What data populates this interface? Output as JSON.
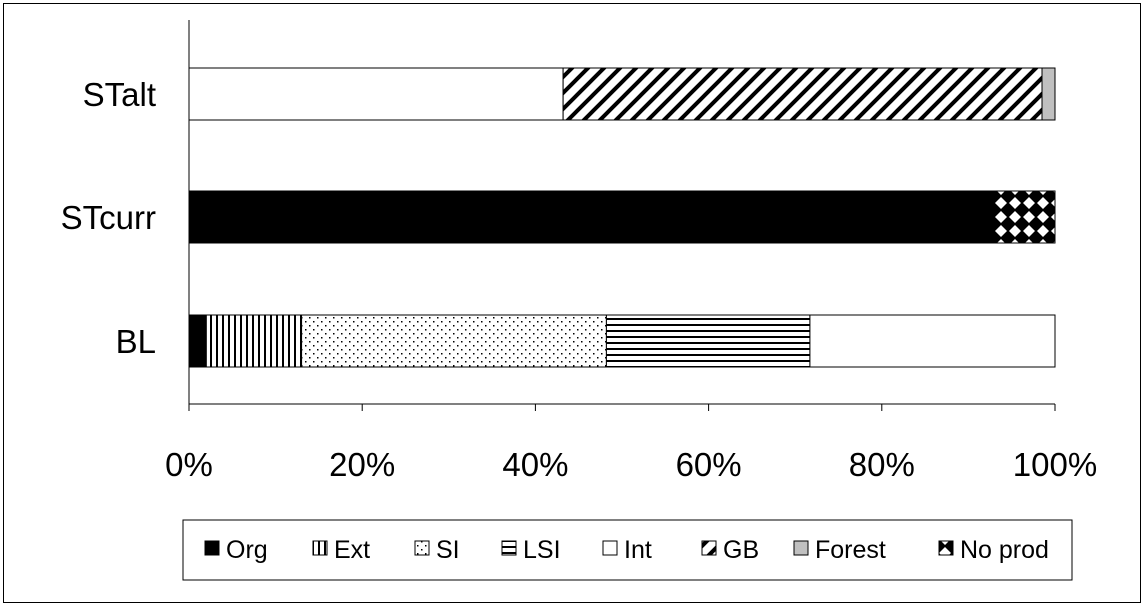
{
  "chart_data": {
    "type": "bar",
    "orientation": "horizontal",
    "stacked": "percent",
    "categories": [
      "STalt",
      "STcurr",
      "BL"
    ],
    "series": [
      {
        "name": "Org",
        "pattern": "solid-black",
        "values": [
          0,
          93,
          2
        ]
      },
      {
        "name": "Ext",
        "pattern": "vertical",
        "values": [
          0,
          0,
          11
        ]
      },
      {
        "name": "SI",
        "pattern": "dots",
        "values": [
          0,
          0,
          35.2
        ]
      },
      {
        "name": "LSI",
        "pattern": "horizontal",
        "values": [
          0,
          0,
          23.5
        ]
      },
      {
        "name": "Int",
        "pattern": "white",
        "values": [
          43.2,
          0,
          28.3
        ]
      },
      {
        "name": "GB",
        "pattern": "diagonal",
        "values": [
          55.3,
          0,
          0
        ]
      },
      {
        "name": "Forest",
        "pattern": "gray",
        "values": [
          1.5,
          0,
          0
        ]
      },
      {
        "name": "No prod",
        "pattern": "checker",
        "values": [
          0,
          7,
          0
        ]
      }
    ],
    "x_ticks": [
      "0%",
      "20%",
      "40%",
      "60%",
      "80%",
      "100%"
    ],
    "xlim": [
      0,
      100
    ],
    "title": "",
    "xlabel": "",
    "ylabel": "",
    "grid": false,
    "legend_position": "bottom",
    "colors": {
      "fill": "#000000",
      "gray": "#c0c0c0",
      "background": "#ffffff"
    }
  }
}
